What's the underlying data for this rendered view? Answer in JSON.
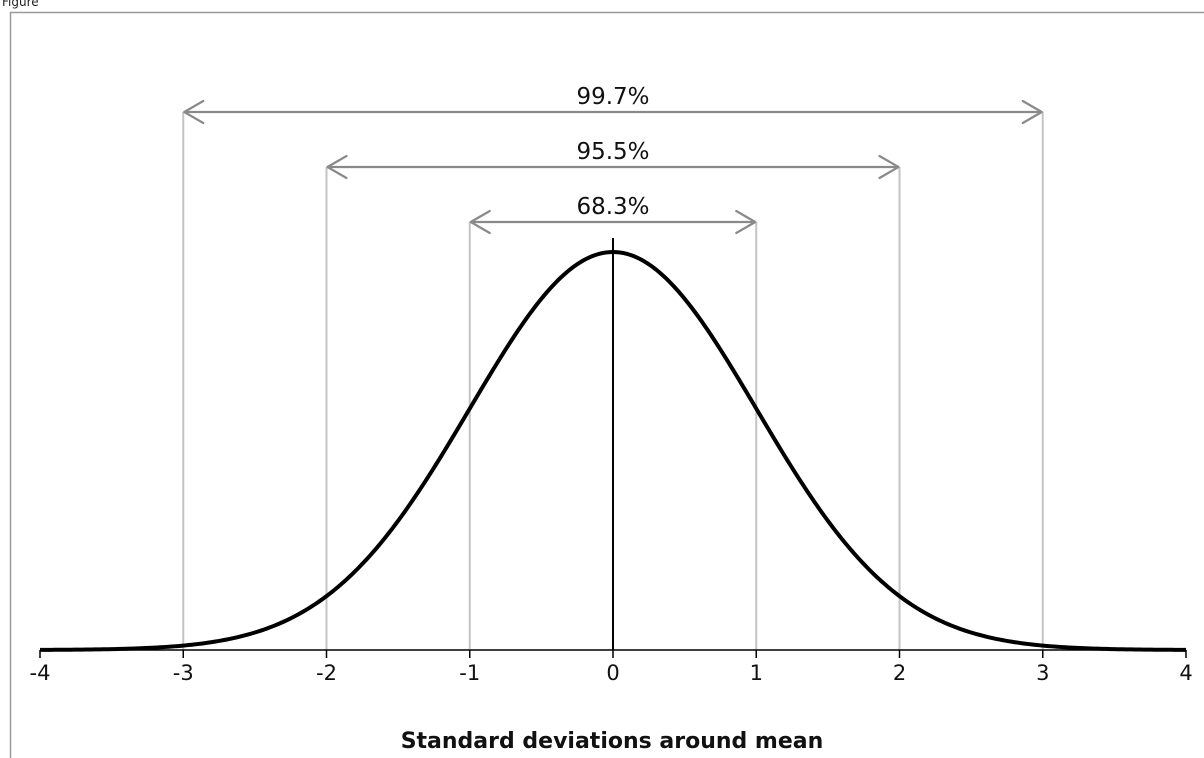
{
  "corner_label": "Figure",
  "chart_data": {
    "type": "line",
    "title": "",
    "xlabel": "Standard deviations around mean",
    "ylabel": "",
    "xlim": [
      -4,
      4
    ],
    "ylim": [
      0,
      0.4
    ],
    "grid": false,
    "x_ticks": [
      "-4",
      "-3",
      "-2",
      "-1",
      "0",
      "1",
      "2",
      "3",
      "4"
    ],
    "series": [
      {
        "function": "normal_pdf",
        "mean": 0,
        "sd": 1,
        "color": "#000000"
      }
    ],
    "bands": [
      {
        "from": -1,
        "to": 1,
        "label": "68.3%"
      },
      {
        "from": -2,
        "to": 2,
        "label": "95.5%"
      },
      {
        "from": -3,
        "to": 3,
        "label": "99.7%"
      }
    ],
    "mean_line_x": 0,
    "colors": {
      "curve": "#000000",
      "bands": "#8a8a8a",
      "guides": "#c4c4c4",
      "axis": "#000000"
    }
  }
}
